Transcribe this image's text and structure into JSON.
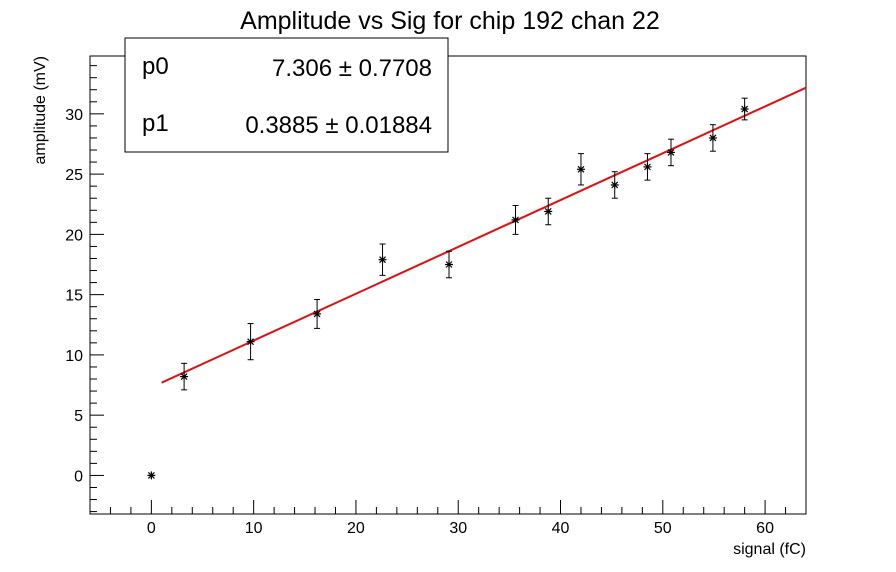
{
  "chart_data": {
    "type": "scatter",
    "title": "Amplitude vs Sig for chip 192 chan 22",
    "xlabel": "signal (fC)",
    "ylabel": "amplitude (mV)",
    "xlim": [
      -6,
      64
    ],
    "ylim": [
      -3.2,
      34.8
    ],
    "x_ticks": [
      0,
      10,
      20,
      30,
      40,
      50,
      60
    ],
    "y_ticks": [
      0,
      5,
      10,
      15,
      20,
      25,
      30
    ],
    "grid": false,
    "marker": "asterisk",
    "colors": {
      "points": "#000000",
      "fit": "#dd1111"
    },
    "series": [
      {
        "points": [
          {
            "x": 0.0,
            "y": 0.0,
            "err": 0.0
          },
          {
            "x": 3.2,
            "y": 8.2,
            "err": 1.1
          },
          {
            "x": 9.7,
            "y": 11.1,
            "err": 1.5
          },
          {
            "x": 16.2,
            "y": 13.4,
            "err": 1.2
          },
          {
            "x": 22.6,
            "y": 17.9,
            "err": 1.3
          },
          {
            "x": 29.1,
            "y": 17.5,
            "err": 1.1
          },
          {
            "x": 35.6,
            "y": 21.2,
            "err": 1.2
          },
          {
            "x": 38.8,
            "y": 21.9,
            "err": 1.1
          },
          {
            "x": 42.0,
            "y": 25.4,
            "err": 1.3
          },
          {
            "x": 45.3,
            "y": 24.1,
            "err": 1.1
          },
          {
            "x": 48.5,
            "y": 25.6,
            "err": 1.1
          },
          {
            "x": 50.8,
            "y": 26.8,
            "err": 1.1
          },
          {
            "x": 54.9,
            "y": 28.0,
            "err": 1.1
          },
          {
            "x": 58.0,
            "y": 30.4,
            "err": 0.9
          }
        ]
      }
    ],
    "fit": {
      "p0": 7.306,
      "p1": 0.3885,
      "x_range": [
        1.0,
        64.0
      ]
    },
    "stats_box": {
      "placement": "top-left",
      "rows": [
        {
          "name": "p0",
          "value": "7.306",
          "error": "0.7708"
        },
        {
          "name": "p1",
          "value": "0.3885",
          "error": "0.01884"
        }
      ]
    }
  }
}
